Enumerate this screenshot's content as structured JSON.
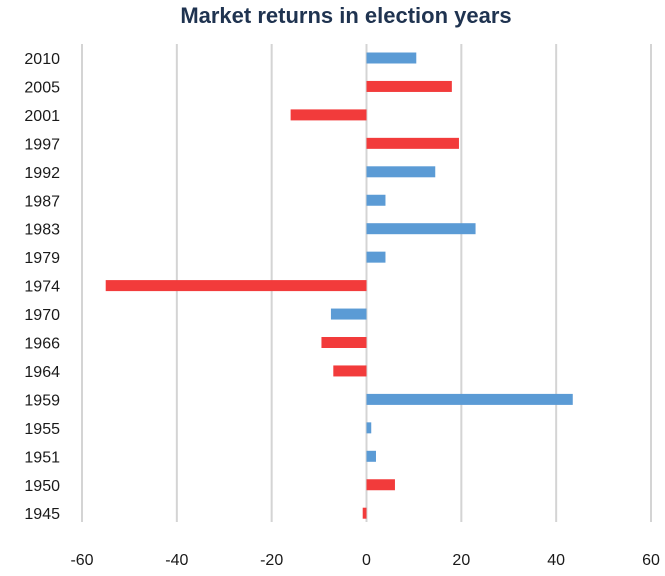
{
  "chart_data": {
    "type": "bar",
    "orientation": "horizontal",
    "title": "Market returns in election years",
    "xlabel": "",
    "ylabel": "",
    "xlim": [
      -60,
      60
    ],
    "xticks": [
      -60,
      -40,
      -20,
      0,
      20,
      40,
      60
    ],
    "grid": "vertical",
    "legend": "none",
    "colors": {
      "blue": "#5b9bd5",
      "red": "#f23b3b",
      "grid": "#d4d4d4",
      "title": "#1f3350"
    },
    "categories": [
      "2010",
      "2005",
      "2001",
      "1997",
      "1992",
      "1987",
      "1983",
      "1979",
      "1974",
      "1970",
      "1966",
      "1964",
      "1959",
      "1955",
      "1951",
      "1950",
      "1945"
    ],
    "values": [
      10.5,
      18,
      -16,
      19.5,
      14.5,
      4,
      23,
      4,
      -55,
      -7.5,
      -9.5,
      -7,
      43.5,
      1,
      2,
      6,
      -0.8
    ],
    "bar_colors": [
      "blue",
      "red",
      "red",
      "red",
      "blue",
      "blue",
      "blue",
      "blue",
      "red",
      "blue",
      "red",
      "red",
      "blue",
      "blue",
      "blue",
      "red",
      "red"
    ]
  }
}
